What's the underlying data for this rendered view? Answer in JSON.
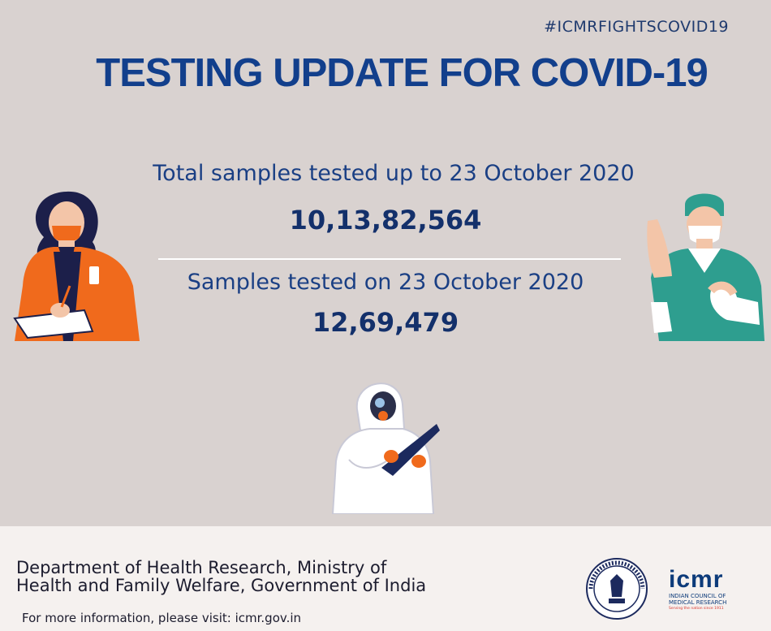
{
  "hashtag": "#ICMRFIGHTSCOVID19",
  "title": "TESTING UPDATE FOR COVID-19",
  "stats": {
    "total_label": "Total samples tested up to 23 October 2020",
    "total_value": "10,13,82,564",
    "daily_label": "Samples tested on  23 October 2020",
    "daily_value": "12,69,479"
  },
  "footer": {
    "dept_line1": "Department of Health Research, Ministry of",
    "dept_line2": "Health and Family Welfare, Government of India",
    "more_info": "For more information, please visit: icmr.gov.in"
  },
  "logo": {
    "name": "icmr",
    "subtitle_line1": "INDIAN COUNCIL OF",
    "subtitle_line2": "MEDICAL RESEARCH",
    "tagline": "Serving the nation since 1911"
  },
  "icons": [
    "doctor-clipboard-illustration",
    "surgeon-gloving-illustration",
    "ppe-worker-illustration",
    "icmr-seal-icon",
    "icmr-logo-icon"
  ],
  "colors": {
    "background": "#d9d2d0",
    "title": "#123f8c",
    "text": "#1a3f84",
    "footer_bg": "#f5f1ef",
    "accent_orange": "#f06a1c",
    "accent_teal": "#2e9e8f"
  }
}
